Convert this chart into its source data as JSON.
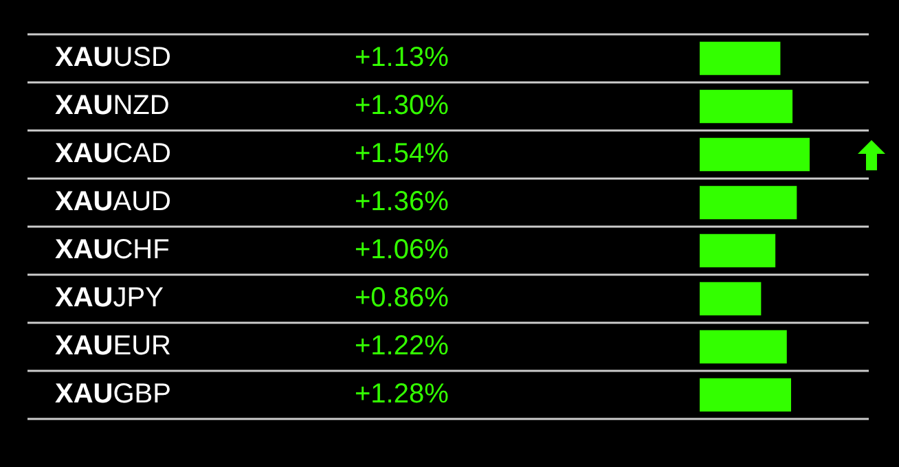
{
  "chart_data": {
    "type": "bar",
    "orientation": "horizontal",
    "tick_labels": false,
    "categories": [
      "XAUUSD",
      "XAUNZD",
      "XAUCAD",
      "XAUAUD",
      "XAUCHF",
      "XAUJPY",
      "XAUEUR",
      "XAUGBP"
    ],
    "values": [
      1.13,
      1.3,
      1.54,
      1.36,
      1.06,
      0.86,
      1.22,
      1.28
    ],
    "value_labels": [
      "+1.13%",
      "+1.30%",
      "+1.54%",
      "+1.36%",
      "+1.06%",
      "+0.86%",
      "+1.22%",
      "+1.28%"
    ],
    "color": "#33ff00",
    "grid": "y",
    "legend": false
  }
}
